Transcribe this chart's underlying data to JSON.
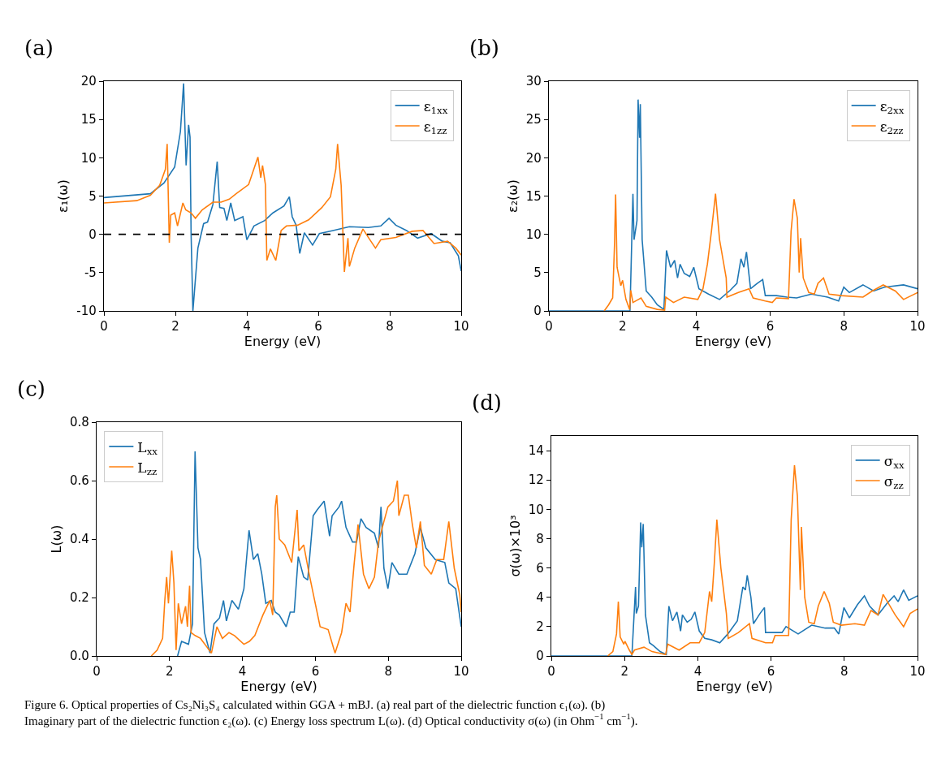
{
  "chart_data": [
    {
      "type": "line",
      "annotations": [
        "(a)"
      ],
      "xlabel": "Energy (eV)",
      "ylabel": "ε₁(ω)",
      "xlim": [
        0,
        10
      ],
      "xticks": [
        0,
        2,
        4,
        6,
        8,
        10
      ],
      "ylim": [
        -10,
        20
      ],
      "yticks": [
        -10,
        -5,
        0,
        5,
        10,
        15,
        20
      ],
      "legend": "top right",
      "marker": "none",
      "line_style": "solid",
      "ref_lines": [
        {
          "axis": "y",
          "value": 0,
          "label": null,
          "color": "#000000",
          "line_style": "dashed"
        }
      ],
      "series": [
        {
          "name": "ε$_{1xx}$",
          "color": "#1f77b4",
          "x": [
            0,
            1.3,
            1.68,
            1.98,
            2.14,
            2.23,
            2.3,
            2.37,
            2.41,
            2.44,
            2.49,
            2.63,
            2.79,
            2.9,
            3.05,
            3.17,
            3.24,
            3.36,
            3.44,
            3.55,
            3.66,
            3.89,
            4.0,
            4.2,
            4.5,
            4.73,
            5.04,
            5.19,
            5.27,
            5.38,
            5.48,
            5.61,
            5.84,
            6.03,
            6.41,
            6.87,
            7.4,
            7.75,
            7.98,
            8.17,
            8.47,
            8.78,
            9.16,
            9.47,
            9.69,
            9.92,
            10
          ],
          "values": [
            4.8,
            5.3,
            6.7,
            8.8,
            13.4,
            19.7,
            9.0,
            14.3,
            12.7,
            0,
            -10,
            -1.8,
            1.4,
            1.6,
            3.9,
            9.5,
            3.5,
            3.4,
            1.8,
            4.1,
            1.8,
            2.3,
            -0.7,
            1.1,
            1.8,
            2.8,
            3.7,
            4.9,
            2.3,
            1.2,
            -2.5,
            0.2,
            -1.4,
            0.1,
            0.5,
            1.0,
            0.9,
            1.1,
            2.1,
            1.2,
            0.5,
            -0.5,
            0.1,
            -0.9,
            -1.1,
            -2.8,
            -4.8
          ]
        },
        {
          "name": "ε$_{1zz}$",
          "color": "#ff7f0e",
          "x": [
            0,
            0.92,
            1.3,
            1.56,
            1.72,
            1.77,
            1.83,
            1.87,
            1.98,
            2.06,
            2.21,
            2.29,
            2.44,
            2.56,
            2.75,
            3.05,
            3.28,
            3.51,
            3.7,
            4.05,
            4.31,
            4.39,
            4.44,
            4.52,
            4.56,
            4.66,
            4.81,
            4.96,
            5.11,
            5.42,
            5.73,
            6.1,
            6.34,
            6.49,
            6.54,
            6.64,
            6.73,
            6.83,
            6.87,
            7.02,
            7.25,
            7.4,
            7.6,
            7.75,
            8.17,
            8.63,
            8.93,
            9.24,
            9.62,
            9.85,
            10
          ],
          "values": [
            4.1,
            4.4,
            5.1,
            6.4,
            8.5,
            11.8,
            -1.1,
            2.5,
            2.8,
            1.1,
            4.1,
            3.2,
            2.8,
            2.1,
            3.2,
            4.2,
            4.2,
            4.6,
            5.3,
            6.5,
            10.1,
            7.4,
            9.0,
            6.5,
            -3.4,
            -1.9,
            -3.4,
            0.5,
            1.1,
            1.2,
            1.9,
            3.5,
            4.9,
            8.5,
            11.8,
            6.4,
            -4.9,
            -0.5,
            -4.2,
            -1.8,
            0.7,
            -0.4,
            -1.8,
            -0.7,
            -0.4,
            0.4,
            0.5,
            -1.2,
            -0.9,
            -1.8,
            -2.7
          ]
        }
      ]
    },
    {
      "type": "line",
      "annotations": [
        "(b)"
      ],
      "xlabel": "Energy (eV)",
      "ylabel": "ε₂(ω)",
      "xlim": [
        0,
        10
      ],
      "xticks": [
        0,
        2,
        4,
        6,
        8,
        10
      ],
      "ylim": [
        0,
        30
      ],
      "yticks": [
        0,
        5,
        10,
        15,
        20,
        25,
        30
      ],
      "legend": "top right",
      "marker": "none",
      "line_style": "solid",
      "series": [
        {
          "name": "ε$_{2xx}$",
          "color": "#1f77b4",
          "x": [
            0,
            2.2,
            2.28,
            2.31,
            2.39,
            2.42,
            2.46,
            2.48,
            2.53,
            2.64,
            2.79,
            2.94,
            3.12,
            3.19,
            3.3,
            3.41,
            3.49,
            3.56,
            3.67,
            3.82,
            3.93,
            4.07,
            4.33,
            4.63,
            4.92,
            5.1,
            5.21,
            5.29,
            5.36,
            5.47,
            5.65,
            5.8,
            5.87,
            6.17,
            6.46,
            6.72,
            7.12,
            7.56,
            7.86,
            8.0,
            8.15,
            8.52,
            8.81,
            9.1,
            9.62,
            10
          ],
          "values": [
            0,
            0,
            15.3,
            9.3,
            11.8,
            27.6,
            22.6,
            27,
            9.3,
            2.6,
            1.8,
            0.8,
            0.2,
            7.9,
            5.7,
            6.6,
            4.3,
            6.1,
            4.9,
            4.5,
            5.7,
            2.9,
            2.2,
            1.5,
            2.7,
            3.6,
            6.8,
            5.7,
            7.7,
            2.9,
            3.6,
            4.1,
            2.0,
            2.0,
            1.8,
            1.7,
            2.2,
            1.8,
            1.3,
            3.1,
            2.4,
            3.4,
            2.6,
            3.1,
            3.4,
            2.9
          ]
        },
        {
          "name": "ε$_{2zz}$",
          "color": "#ff7f0e",
          "x": [
            1.5,
            1.62,
            1.73,
            1.78,
            1.81,
            1.85,
            1.95,
            2.0,
            2.09,
            2.19,
            2.22,
            2.28,
            2.5,
            2.64,
            2.94,
            3.14,
            3.17,
            3.38,
            3.67,
            4.04,
            4.18,
            4.3,
            4.41,
            4.52,
            4.63,
            4.81,
            4.83,
            5.14,
            5.43,
            5.54,
            5.87,
            6.06,
            6.17,
            6.5,
            6.57,
            6.65,
            6.74,
            6.79,
            6.83,
            6.9,
            7.05,
            7.2,
            7.3,
            7.45,
            7.6,
            7.93,
            8.52,
            8.77,
            9.07,
            9.4,
            9.62,
            10
          ],
          "values": [
            0,
            0.8,
            1.7,
            8.6,
            15.2,
            5.7,
            3.3,
            4.0,
            1.5,
            0.2,
            2.7,
            1.1,
            1.7,
            0.6,
            0.2,
            0.1,
            1.8,
            1.1,
            1.8,
            1.5,
            2.9,
            6.1,
            10.4,
            15.3,
            9.3,
            4.3,
            1.8,
            2.4,
            2.9,
            1.7,
            1.3,
            1.1,
            1.7,
            1.6,
            10.4,
            14.6,
            12.1,
            5.0,
            9.5,
            4.3,
            2.4,
            2.2,
            3.6,
            4.3,
            2.2,
            2.0,
            1.8,
            2.6,
            3.4,
            2.6,
            1.5,
            2.4
          ]
        }
      ]
    },
    {
      "type": "line",
      "annotations": [
        "(c)"
      ],
      "xlabel": "Energy (eV)",
      "ylabel": "L(ω)",
      "xlim": [
        0,
        10
      ],
      "xticks": [
        0,
        2,
        4,
        6,
        8,
        10
      ],
      "ylim": [
        0,
        0.8
      ],
      "yticks": [
        {
          "value": 0,
          "label": "0.0"
        },
        {
          "value": 0.2,
          "label": "0.2"
        },
        {
          "value": 0.4,
          "label": "0.4"
        },
        {
          "value": 0.6,
          "label": "0.6"
        },
        {
          "value": 0.8,
          "label": "0.8"
        }
      ],
      "legend": "top left",
      "marker": "none",
      "line_style": "solid",
      "series": [
        {
          "name": "L$_{xx}$",
          "color": "#1f77b4",
          "x": [
            2.22,
            2.33,
            2.52,
            2.63,
            2.7,
            2.78,
            2.85,
            2.96,
            3.11,
            3.22,
            3.37,
            3.48,
            3.56,
            3.71,
            3.89,
            4.04,
            4.18,
            4.3,
            4.42,
            4.53,
            4.64,
            4.79,
            4.9,
            5.01,
            5.2,
            5.31,
            5.42,
            5.53,
            5.68,
            5.79,
            5.94,
            6.05,
            6.24,
            6.39,
            6.46,
            6.65,
            6.72,
            6.84,
            7.02,
            7.13,
            7.25,
            7.39,
            7.62,
            7.73,
            7.8,
            7.88,
            7.99,
            8.1,
            8.29,
            8.51,
            8.73,
            8.88,
            9.03,
            9.29,
            9.55,
            9.66,
            9.85,
            10
          ],
          "values": [
            0,
            0.05,
            0.04,
            0.11,
            0.7,
            0.37,
            0.33,
            0.08,
            0.01,
            0.11,
            0.13,
            0.19,
            0.12,
            0.19,
            0.16,
            0.23,
            0.43,
            0.33,
            0.35,
            0.28,
            0.18,
            0.19,
            0.15,
            0.14,
            0.1,
            0.15,
            0.15,
            0.34,
            0.27,
            0.26,
            0.48,
            0.5,
            0.53,
            0.41,
            0.48,
            0.51,
            0.53,
            0.44,
            0.39,
            0.39,
            0.47,
            0.44,
            0.42,
            0.37,
            0.51,
            0.3,
            0.23,
            0.32,
            0.28,
            0.28,
            0.35,
            0.44,
            0.37,
            0.33,
            0.32,
            0.25,
            0.23,
            0.1
          ]
        },
        {
          "name": "L$_{zz}$",
          "color": "#ff7f0e",
          "x": [
            1.5,
            1.66,
            1.81,
            1.87,
            1.92,
            1.97,
            2.06,
            2.12,
            2.18,
            2.24,
            2.33,
            2.44,
            2.49,
            2.55,
            2.59,
            2.7,
            2.85,
            3.15,
            3.3,
            3.45,
            3.63,
            3.78,
            4.04,
            4.19,
            4.34,
            4.56,
            4.75,
            4.83,
            4.9,
            4.94,
            5.01,
            5.16,
            5.35,
            5.5,
            5.55,
            5.68,
            5.83,
            5.98,
            6.13,
            6.35,
            6.54,
            6.72,
            6.84,
            6.95,
            7.06,
            7.17,
            7.32,
            7.47,
            7.62,
            7.73,
            7.88,
            7.99,
            8.14,
            8.25,
            8.29,
            8.44,
            8.55,
            8.66,
            8.77,
            8.88,
            8.99,
            9.18,
            9.33,
            9.52,
            9.66,
            9.81,
            9.96,
            10
          ],
          "values": [
            0,
            0.02,
            0.06,
            0.19,
            0.27,
            0.18,
            0.36,
            0.25,
            0.02,
            0.18,
            0.11,
            0.17,
            0.1,
            0.24,
            0.08,
            0.07,
            0.06,
            0.01,
            0.1,
            0.06,
            0.08,
            0.07,
            0.04,
            0.05,
            0.07,
            0.14,
            0.19,
            0.14,
            0.51,
            0.55,
            0.4,
            0.38,
            0.32,
            0.5,
            0.36,
            0.38,
            0.28,
            0.19,
            0.1,
            0.09,
            0.01,
            0.08,
            0.18,
            0.15,
            0.31,
            0.45,
            0.28,
            0.23,
            0.27,
            0.39,
            0.46,
            0.51,
            0.53,
            0.6,
            0.48,
            0.55,
            0.55,
            0.45,
            0.37,
            0.46,
            0.31,
            0.28,
            0.33,
            0.33,
            0.46,
            0.3,
            0.21,
            0.15
          ]
        }
      ]
    },
    {
      "type": "line",
      "annotations": [
        "(d)",
        "Figure 6. Optical properties of Cs₂Ni₃S₄ calculated within GGA + mBJ. (a) real part of the dielectric function ϵ₁(ω). (b) Imaginary part of the dielectric function ϵ₂(ω). (c) Energy loss spectrum L(ω). (d) Optical conductivity σ(ω) (in Ohm$^{−1}$ cm$^{−1}$)."
      ],
      "xlabel": "Energy (eV)",
      "ylabel": "σ(ω)×10³",
      "xlim": [
        0,
        10
      ],
      "xticks": [
        0,
        2,
        4,
        6,
        8,
        10
      ],
      "ylim": [
        0,
        15
      ],
      "yticks": [
        0,
        2,
        4,
        6,
        8,
        10,
        12,
        14
      ],
      "legend": "top right",
      "marker": "none",
      "line_style": "solid",
      "series": [
        {
          "name": "σ$_{xx}$",
          "color": "#1f77b4",
          "x": [
            0,
            2.2,
            2.3,
            2.32,
            2.38,
            2.44,
            2.47,
            2.51,
            2.57,
            2.68,
            2.79,
            2.97,
            3.14,
            3.21,
            3.31,
            3.43,
            3.53,
            3.58,
            3.71,
            3.82,
            3.92,
            4.04,
            4.19,
            4.38,
            4.6,
            4.82,
            5.08,
            5.23,
            5.3,
            5.35,
            5.45,
            5.52,
            5.7,
            5.82,
            5.85,
            6.07,
            6.3,
            6.41,
            6.74,
            7.11,
            7.48,
            7.73,
            7.85,
            7.99,
            8.14,
            8.36,
            8.55,
            8.69,
            8.92,
            9.17,
            9.36,
            9.47,
            9.62,
            9.76,
            10
          ],
          "values": [
            0,
            0,
            4.7,
            2.9,
            3.4,
            9.1,
            7.4,
            9.0,
            2.8,
            0.9,
            0.7,
            0.3,
            0.1,
            3.4,
            2.4,
            3.0,
            1.7,
            2.8,
            2.3,
            2.5,
            3.0,
            1.7,
            1.2,
            1.1,
            0.9,
            1.5,
            2.4,
            4.7,
            4.5,
            5.5,
            4.0,
            2.2,
            2.9,
            3.3,
            1.6,
            1.6,
            1.6,
            2.0,
            1.5,
            2.1,
            1.9,
            1.9,
            1.5,
            3.3,
            2.6,
            3.5,
            4.1,
            3.4,
            2.8,
            3.6,
            4.1,
            3.7,
            4.5,
            3.8,
            4.1
          ]
        },
        {
          "name": "σ$_{zz}$",
          "color": "#ff7f0e",
          "x": [
            1.54,
            1.68,
            1.78,
            1.83,
            1.88,
            1.98,
            2.01,
            2.13,
            2.2,
            2.27,
            2.53,
            2.75,
            3.12,
            3.18,
            3.49,
            3.79,
            4.04,
            4.19,
            4.32,
            4.38,
            4.45,
            4.52,
            4.63,
            4.78,
            4.83,
            5.11,
            5.41,
            5.48,
            5.85,
            6.04,
            6.11,
            6.48,
            6.55,
            6.64,
            6.72,
            6.8,
            6.83,
            6.92,
            7.03,
            7.18,
            7.29,
            7.45,
            7.59,
            7.7,
            7.92,
            8.29,
            8.55,
            8.73,
            8.92,
            9.06,
            9.25,
            9.39,
            9.62,
            9.8,
            10
          ],
          "values": [
            0,
            0.3,
            1.5,
            3.7,
            1.3,
            0.8,
            1.0,
            0.4,
            0.1,
            0.4,
            0.6,
            0.3,
            0.1,
            0.8,
            0.4,
            0.9,
            0.9,
            1.6,
            4.4,
            3.7,
            6.3,
            9.3,
            6.0,
            2.9,
            1.2,
            1.6,
            2.2,
            1.2,
            0.9,
            0.9,
            1.4,
            1.4,
            9.3,
            13.0,
            10.9,
            4.5,
            8.8,
            4.0,
            2.3,
            2.2,
            3.4,
            4.4,
            3.6,
            2.3,
            2.1,
            2.2,
            2.1,
            3.1,
            2.8,
            4.2,
            3.4,
            2.8,
            2.0,
            2.9,
            3.2
          ]
        }
      ]
    }
  ]
}
